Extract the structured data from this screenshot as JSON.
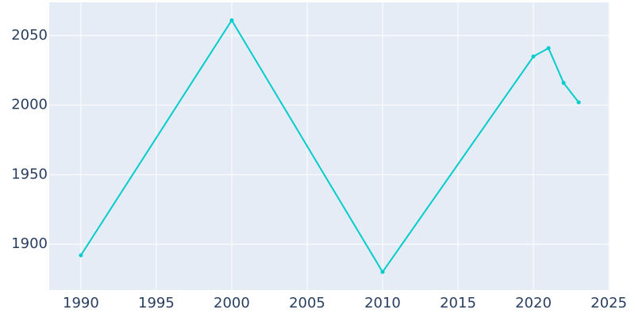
{
  "chart_data": {
    "type": "line",
    "x": [
      1990,
      2000,
      2010,
      2020,
      2021,
      2022,
      2023
    ],
    "series": [
      {
        "color": "#00cccc",
        "values": [
          1892,
          2061,
          1880,
          2035,
          2041,
          2016,
          2002
        ]
      }
    ],
    "xlim": [
      1987.9,
      2025.05
    ],
    "xticks": [
      1990,
      1995,
      2000,
      2005,
      2010,
      2015,
      2020,
      2025
    ],
    "ylim": [
      1867,
      2073.9
    ],
    "yticks": [
      1900,
      1950,
      2000,
      2050
    ],
    "grid": true
  }
}
